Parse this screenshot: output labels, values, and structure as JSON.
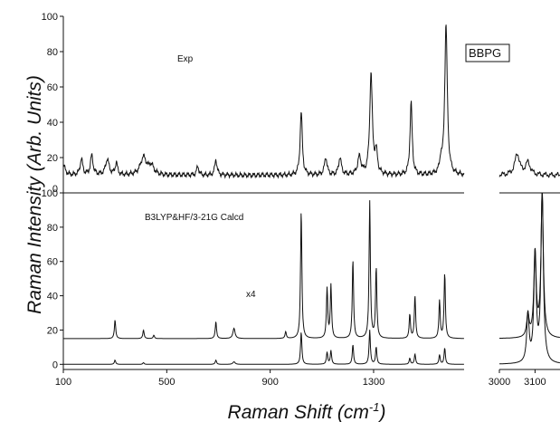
{
  "chart_data": {
    "type": "line",
    "xlabel": "Raman Shift (cm",
    "xlabel_sup": "-1",
    "xlabel_close": ")",
    "ylabel": "Raman Intensity (Arb. Units)",
    "badge": "BBPG",
    "x_main_range": [
      100,
      1650
    ],
    "x_main_ticks": [
      100,
      500,
      900,
      1300
    ],
    "x_break_range": [
      3000,
      3170
    ],
    "x_break_ticks": [
      3000,
      3100
    ],
    "panels": [
      {
        "label": "Exp",
        "ylim": [
          0,
          100
        ],
        "yticks": [
          0,
          20,
          40,
          60,
          80,
          100
        ],
        "series": [
          {
            "baseline": 10,
            "peaks": [
              [
                100,
                6,
                8
              ],
              [
                170,
                9,
                6
              ],
              [
                210,
                11,
                6
              ],
              [
                270,
                9,
                8
              ],
              [
                305,
                7,
                5
              ],
              [
                410,
                10,
                14
              ],
              [
                440,
                5,
                12
              ],
              [
                620,
                5,
                5
              ],
              [
                690,
                9,
                5
              ],
              [
                1020,
                36,
                5
              ],
              [
                1115,
                10,
                6
              ],
              [
                1170,
                10,
                6
              ],
              [
                1245,
                10,
                8
              ],
              [
                1290,
                57,
                6
              ],
              [
                1310,
                12,
                6
              ],
              [
                1445,
                41,
                5
              ],
              [
                1560,
                7,
                5
              ],
              [
                1580,
                85,
                6
              ],
              [
                3050,
                12,
                8
              ],
              [
                3080,
                7,
                8
              ]
            ]
          }
        ]
      },
      {
        "label": "B3LYP&HF/3-21G Calcd",
        "ylim": [
          -3,
          100
        ],
        "yticks": [
          0,
          20,
          40,
          60,
          80,
          100
        ],
        "series": [
          {
            "annotation": "x4",
            "baseline": 15,
            "peaks": [
              [
                300,
                11,
                3
              ],
              [
                410,
                5,
                3
              ],
              [
                450,
                2,
                3
              ],
              [
                690,
                10,
                3
              ],
              [
                760,
                6,
                5
              ],
              [
                960,
                4,
                3
              ],
              [
                1020,
                75,
                3
              ],
              [
                1120,
                29,
                3
              ],
              [
                1135,
                31,
                3
              ],
              [
                1220,
                46,
                3
              ],
              [
                1285,
                80,
                3
              ],
              [
                1310,
                41,
                3
              ],
              [
                1440,
                14,
                3
              ],
              [
                1460,
                25,
                3
              ],
              [
                1555,
                22,
                3
              ],
              [
                1575,
                38,
                3
              ],
              [
                3080,
                13,
                4
              ],
              [
                3100,
                49,
                4
              ],
              [
                3120,
                83,
                4
              ]
            ]
          },
          {
            "baseline": 0,
            "peaks": [
              [
                300,
                2.5,
                3
              ],
              [
                410,
                1,
                3
              ],
              [
                690,
                2.5,
                3
              ],
              [
                760,
                1.5,
                5
              ],
              [
                1020,
                19,
                3
              ],
              [
                1120,
                7,
                3
              ],
              [
                1135,
                8,
                3
              ],
              [
                1220,
                11.5,
                3
              ],
              [
                1285,
                20,
                3
              ],
              [
                1310,
                10,
                3
              ],
              [
                1440,
                3.5,
                3
              ],
              [
                1460,
                6,
                3
              ],
              [
                1555,
                5.5,
                3
              ],
              [
                1575,
                9.5,
                3
              ],
              [
                3080,
                28,
                4
              ],
              [
                3100,
                63,
                4
              ],
              [
                3120,
                100,
                4
              ]
            ]
          }
        ]
      }
    ]
  }
}
